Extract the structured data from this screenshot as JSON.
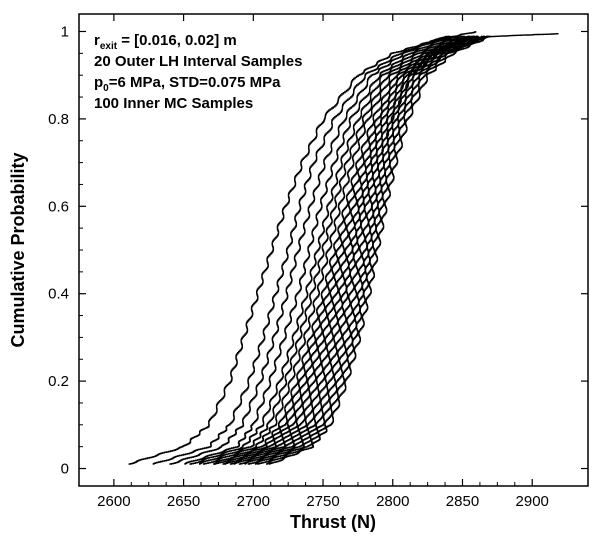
{
  "chart_data": {
    "type": "line",
    "title": "",
    "xlabel": "Thrust (N)",
    "ylabel": "Cumulative Probability",
    "xlim": [
      2575,
      2940
    ],
    "ylim": [
      -0.04,
      1.04
    ],
    "x_ticks": [
      2600,
      2650,
      2700,
      2750,
      2800,
      2850,
      2900
    ],
    "y_ticks": [
      0,
      0.2,
      0.4,
      0.6,
      0.8,
      1
    ],
    "grid": false,
    "legend": "none",
    "line_color": "#000000",
    "annotations": {
      "line1_main": "r",
      "line1_sub": "exit",
      "line1_rest": " = [0.016, 0.02] m",
      "line2": "20 Outer LH Interval Samples",
      "line3_main": "p",
      "line3_sub": "0",
      "line3_rest": "=6 MPa, STD=0.075 MPa",
      "line4": "100 Inner MC Samples"
    },
    "series": [
      {
        "x": [
          2610,
          2650,
          2668,
          2683,
          2693,
          2703,
          2713,
          2723,
          2735,
          2750,
          2775,
          2800,
          2830,
          2880,
          2920
        ],
        "y": [
          0.01,
          0.05,
          0.1,
          0.2,
          0.3,
          0.4,
          0.5,
          0.6,
          0.7,
          0.8,
          0.9,
          0.95,
          0.98,
          0.99,
          0.995
        ]
      },
      {
        "x": [
          2628,
          2668,
          2683,
          2697,
          2707,
          2716,
          2725,
          2733,
          2743,
          2758,
          2780,
          2805,
          2830,
          2860
        ],
        "y": [
          0.01,
          0.05,
          0.1,
          0.2,
          0.3,
          0.4,
          0.5,
          0.6,
          0.7,
          0.8,
          0.9,
          0.95,
          0.98,
          1.0
        ]
      },
      {
        "x": [
          2640,
          2678,
          2692,
          2705,
          2715,
          2724,
          2732,
          2741,
          2751,
          2765,
          2785,
          2808,
          2838
        ],
        "y": [
          0.01,
          0.05,
          0.1,
          0.2,
          0.3,
          0.4,
          0.5,
          0.6,
          0.7,
          0.8,
          0.9,
          0.95,
          0.99
        ]
      },
      {
        "x": [
          2650,
          2688,
          2700,
          2712,
          2722,
          2732,
          2740,
          2748,
          2758,
          2770,
          2790,
          2812,
          2842
        ],
        "y": [
          0.01,
          0.05,
          0.1,
          0.2,
          0.3,
          0.4,
          0.5,
          0.6,
          0.7,
          0.8,
          0.9,
          0.95,
          0.99
        ]
      },
      {
        "x": [
          2655,
          2693,
          2706,
          2719,
          2729,
          2738,
          2746,
          2754,
          2763,
          2775,
          2793,
          2815,
          2845
        ],
        "y": [
          0.01,
          0.05,
          0.1,
          0.2,
          0.3,
          0.4,
          0.5,
          0.6,
          0.7,
          0.8,
          0.9,
          0.95,
          0.99
        ]
      },
      {
        "x": [
          2660,
          2698,
          2711,
          2723,
          2733,
          2742,
          2750,
          2758,
          2767,
          2779,
          2796,
          2818,
          2848
        ],
        "y": [
          0.01,
          0.05,
          0.1,
          0.2,
          0.3,
          0.4,
          0.5,
          0.6,
          0.7,
          0.8,
          0.9,
          0.95,
          0.99
        ]
      },
      {
        "x": [
          2665,
          2702,
          2715,
          2727,
          2737,
          2746,
          2754,
          2762,
          2771,
          2782,
          2799,
          2821,
          2850
        ],
        "y": [
          0.01,
          0.05,
          0.1,
          0.2,
          0.3,
          0.4,
          0.5,
          0.6,
          0.7,
          0.8,
          0.9,
          0.95,
          0.99
        ]
      },
      {
        "x": [
          2670,
          2706,
          2719,
          2731,
          2741,
          2750,
          2758,
          2766,
          2775,
          2786,
          2802,
          2823,
          2852
        ],
        "y": [
          0.01,
          0.05,
          0.1,
          0.2,
          0.3,
          0.4,
          0.5,
          0.6,
          0.7,
          0.8,
          0.9,
          0.95,
          0.99
        ]
      },
      {
        "x": [
          2673,
          2709,
          2722,
          2734,
          2744,
          2753,
          2761,
          2769,
          2778,
          2789,
          2804,
          2825,
          2855
        ],
        "y": [
          0.01,
          0.05,
          0.1,
          0.2,
          0.3,
          0.4,
          0.5,
          0.6,
          0.7,
          0.8,
          0.9,
          0.95,
          0.99
        ]
      },
      {
        "x": [
          2677,
          2712,
          2725,
          2737,
          2747,
          2756,
          2764,
          2772,
          2781,
          2791,
          2806,
          2826,
          2855
        ],
        "y": [
          0.01,
          0.05,
          0.1,
          0.2,
          0.3,
          0.4,
          0.5,
          0.6,
          0.7,
          0.8,
          0.9,
          0.95,
          0.99
        ]
      },
      {
        "x": [
          2680,
          2715,
          2728,
          2740,
          2750,
          2759,
          2767,
          2775,
          2783,
          2793,
          2808,
          2828,
          2858
        ],
        "y": [
          0.01,
          0.05,
          0.1,
          0.2,
          0.3,
          0.4,
          0.5,
          0.6,
          0.7,
          0.8,
          0.9,
          0.95,
          0.99
        ]
      },
      {
        "x": [
          2683,
          2718,
          2731,
          2743,
          2753,
          2762,
          2770,
          2777,
          2785,
          2795,
          2810,
          2829,
          2858
        ],
        "y": [
          0.01,
          0.05,
          0.1,
          0.2,
          0.3,
          0.4,
          0.5,
          0.6,
          0.7,
          0.8,
          0.9,
          0.95,
          0.99
        ]
      },
      {
        "x": [
          2686,
          2721,
          2734,
          2746,
          2756,
          2765,
          2772,
          2779,
          2787,
          2797,
          2811,
          2830,
          2860
        ],
        "y": [
          0.01,
          0.05,
          0.1,
          0.2,
          0.3,
          0.4,
          0.5,
          0.6,
          0.7,
          0.8,
          0.9,
          0.95,
          0.99
        ]
      },
      {
        "x": [
          2690,
          2724,
          2737,
          2749,
          2759,
          2767,
          2774,
          2781,
          2789,
          2799,
          2813,
          2832,
          2860
        ],
        "y": [
          0.01,
          0.05,
          0.1,
          0.2,
          0.3,
          0.4,
          0.5,
          0.6,
          0.7,
          0.8,
          0.9,
          0.95,
          0.99
        ]
      },
      {
        "x": [
          2693,
          2727,
          2740,
          2752,
          2762,
          2770,
          2777,
          2784,
          2791,
          2800,
          2814,
          2833,
          2862
        ],
        "y": [
          0.01,
          0.05,
          0.1,
          0.2,
          0.3,
          0.4,
          0.5,
          0.6,
          0.7,
          0.8,
          0.9,
          0.95,
          0.99
        ]
      },
      {
        "x": [
          2697,
          2730,
          2743,
          2755,
          2765,
          2773,
          2780,
          2786,
          2793,
          2802,
          2816,
          2835,
          2865
        ],
        "y": [
          0.01,
          0.05,
          0.1,
          0.2,
          0.3,
          0.4,
          0.5,
          0.6,
          0.7,
          0.8,
          0.9,
          0.95,
          0.99
        ]
      },
      {
        "x": [
          2700,
          2733,
          2746,
          2758,
          2768,
          2776,
          2782,
          2788,
          2795,
          2804,
          2818,
          2837,
          2865
        ],
        "y": [
          0.01,
          0.05,
          0.1,
          0.2,
          0.3,
          0.4,
          0.5,
          0.6,
          0.7,
          0.8,
          0.9,
          0.95,
          0.99
        ]
      },
      {
        "x": [
          2704,
          2736,
          2749,
          2761,
          2771,
          2778,
          2784,
          2790,
          2797,
          2806,
          2820,
          2838,
          2868
        ],
        "y": [
          0.01,
          0.05,
          0.1,
          0.2,
          0.3,
          0.4,
          0.5,
          0.6,
          0.7,
          0.8,
          0.9,
          0.95,
          0.99
        ]
      },
      {
        "x": [
          2708,
          2739,
          2752,
          2764,
          2773,
          2780,
          2786,
          2792,
          2799,
          2808,
          2822,
          2840,
          2868
        ],
        "y": [
          0.01,
          0.05,
          0.1,
          0.2,
          0.3,
          0.4,
          0.5,
          0.6,
          0.7,
          0.8,
          0.9,
          0.95,
          0.99
        ]
      },
      {
        "x": [
          2712,
          2742,
          2755,
          2767,
          2776,
          2783,
          2789,
          2795,
          2802,
          2811,
          2825,
          2843,
          2870
        ],
        "y": [
          0.01,
          0.05,
          0.1,
          0.2,
          0.3,
          0.4,
          0.5,
          0.6,
          0.7,
          0.8,
          0.9,
          0.95,
          0.99
        ]
      }
    ]
  }
}
